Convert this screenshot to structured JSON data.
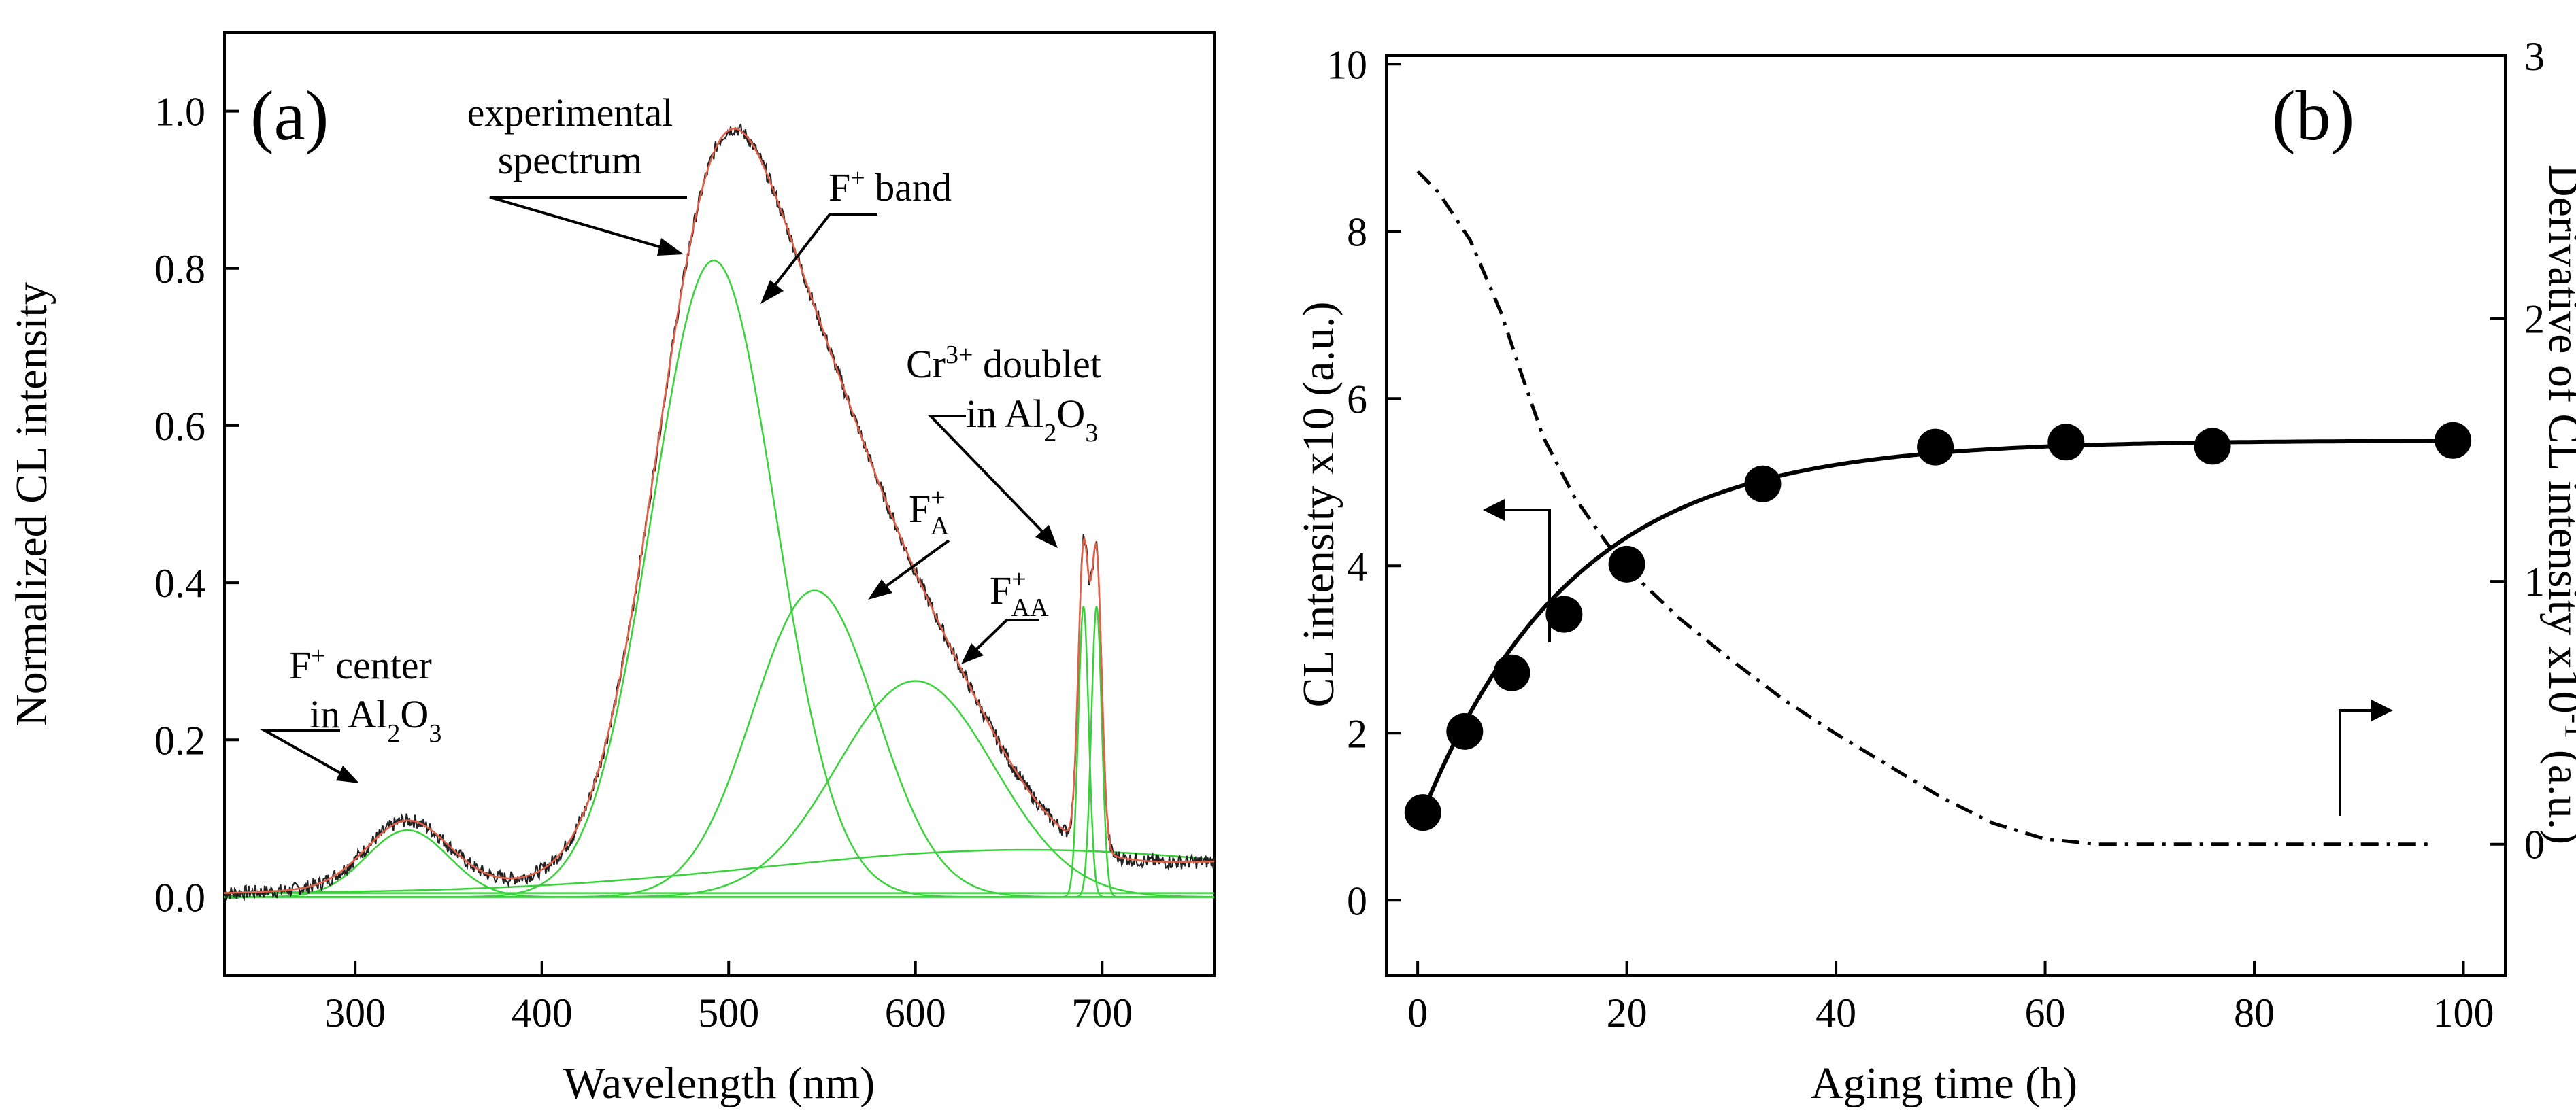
{
  "chart_data": [
    {
      "panel": "(a)",
      "type": "line",
      "xlabel": "Wavelength (nm)",
      "ylabel": "Normalized CL intensity",
      "xlim": [
        230,
        760
      ],
      "ylim": [
        -0.1,
        1.1
      ],
      "xticks": [
        300,
        400,
        500,
        600,
        700
      ],
      "yticks": [
        0.0,
        0.2,
        0.4,
        0.6,
        0.8,
        1.0
      ],
      "xtick_labels": [
        "300",
        "400",
        "500",
        "600",
        "700"
      ],
      "ytick_labels": [
        "0.0",
        "0.2",
        "0.4",
        "0.6",
        "0.8",
        "1.0"
      ],
      "colors": {
        "experimental": "#222222",
        "fit": "#e0604a",
        "component": "#3ad23a",
        "axis": "#000000"
      },
      "components": [
        {
          "name": "F+ center in Al2O3",
          "center": 328,
          "width": 22,
          "amplitude": 0.085
        },
        {
          "name": "F+ band",
          "center": 492,
          "width": 33,
          "amplitude": 0.81
        },
        {
          "name": "FA+",
          "center": 546,
          "width": 33,
          "amplitude": 0.39
        },
        {
          "name": "FAA+",
          "center": 600,
          "width": 42,
          "amplitude": 0.275
        },
        {
          "name": "Cr3+ doublet line 1",
          "center": 690,
          "width": 2.8,
          "amplitude": 0.37
        },
        {
          "name": "Cr3+ doublet line 2",
          "center": 697,
          "width": 2.8,
          "amplitude": 0.37
        }
      ],
      "baseline": [
        [
          230,
          0.005
        ],
        [
          760,
          0.045
        ]
      ],
      "annotations": {
        "experimental": [
          "experimental",
          "spectrum"
        ],
        "fplus_band": {
          "main": "F",
          "sup": "+",
          "tail": " band"
        },
        "cr_doublet": {
          "line1_main": "Cr",
          "line1_sup": "3+",
          "line1_tail": " doublet",
          "line2_pre": "in Al",
          "line2_sub1": "2",
          "line2_mid": "O",
          "line2_sub2": "3"
        },
        "fa": {
          "main": "F",
          "sup": "+",
          "sub": "A"
        },
        "faa": {
          "main": "F",
          "sup": "+",
          "sub": "AA"
        },
        "fcenter": {
          "line1_main": "F",
          "line1_sup": "+",
          "line1_tail": " center",
          "line2_pre": "in Al",
          "line2_sub1": "2",
          "line2_mid": "O",
          "line2_sub2": "3"
        }
      }
    },
    {
      "panel": "(b)",
      "type": "scatter",
      "xlabel": "Aging time (h)",
      "ylabel_left": "CL intensity x10 (a.u.)",
      "ylabel_right": {
        "main": "Derivative of CL intensity x10",
        "sup": "-1",
        "tail": " (a.u.)"
      },
      "xlim": [
        -3,
        104
      ],
      "ylim_left": [
        -0.9,
        10.1
      ],
      "ylim_right": [
        -0.5,
        3
      ],
      "xticks": [
        0,
        20,
        40,
        60,
        80,
        100
      ],
      "yticks_left": [
        0,
        2,
        4,
        6,
        8,
        10
      ],
      "yticks_right": [
        0,
        1,
        2,
        3
      ],
      "xtick_labels": [
        "0",
        "20",
        "40",
        "60",
        "80",
        "100"
      ],
      "ytick_labels_left": [
        "0",
        "2",
        "4",
        "6",
        "8",
        "10"
      ],
      "ytick_labels_right": [
        "0",
        "1",
        "2",
        "3"
      ],
      "series": [
        {
          "name": "CL intensity",
          "axis": "left",
          "x": [
            0.5,
            4.5,
            9,
            14,
            20,
            33,
            49.5,
            62,
            76,
            99
          ],
          "y": [
            1.05,
            2.02,
            2.72,
            3.42,
            4.02,
            4.98,
            5.42,
            5.48,
            5.43,
            5.5
          ]
        },
        {
          "name": "Derivative",
          "axis": "right",
          "style": "dash-dot",
          "x": [
            0,
            2,
            5,
            8,
            10,
            12,
            15,
            18,
            20,
            25,
            30,
            35,
            40,
            45,
            50,
            55,
            60,
            65,
            70,
            80,
            90,
            97
          ],
          "y": [
            2.56,
            2.48,
            2.3,
            2.02,
            1.78,
            1.55,
            1.32,
            1.15,
            1.05,
            0.86,
            0.7,
            0.55,
            0.42,
            0.3,
            0.18,
            0.08,
            0.02,
            0.0,
            0.0,
            0.0,
            0.0,
            0.0
          ]
        }
      ],
      "colors": {
        "marker": "#000000",
        "line": "#000000"
      }
    }
  ]
}
